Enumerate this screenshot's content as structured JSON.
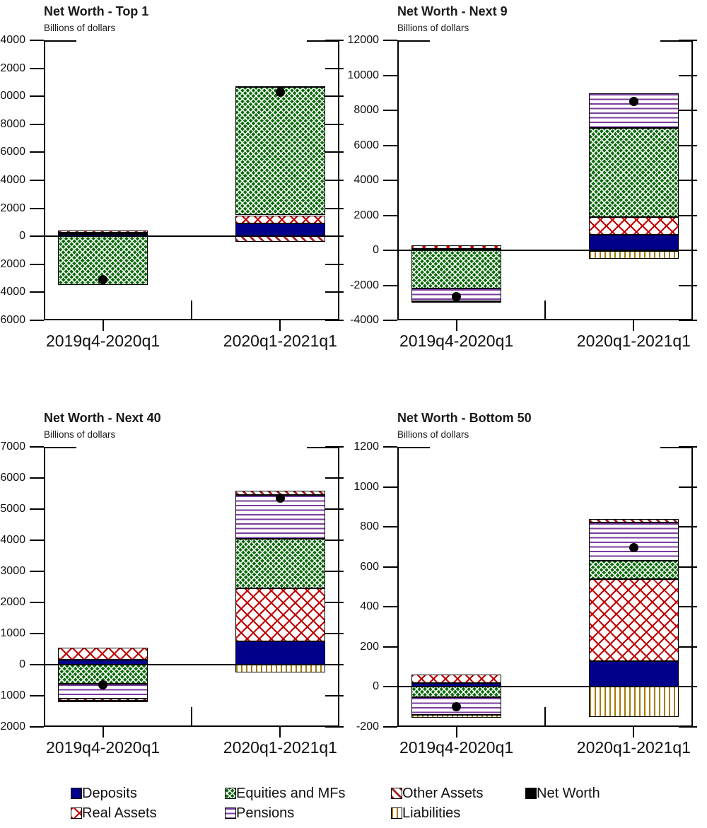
{
  "colors": {
    "deposits": "#00008B",
    "equities": "#0B6A0B",
    "real_assets": "#C00000",
    "pensions": "#7A3D9E",
    "other_assets": "#9E1F1F",
    "liabilities": "#A57A00",
    "net_worth": "#000000"
  },
  "legend": {
    "items": [
      {
        "label": "Deposits",
        "key": "deposits"
      },
      {
        "label": "Equities and MFs",
        "key": "equities"
      },
      {
        "label": "Other Assets",
        "key": "other_assets"
      },
      {
        "label": "Net Worth",
        "key": "net_worth"
      },
      {
        "label": "Real Assets",
        "key": "real_assets"
      },
      {
        "label": "Pensions",
        "key": "pensions"
      },
      {
        "label": "Liabilities",
        "key": "liabilities"
      }
    ]
  },
  "chart_data": [
    {
      "type": "bar",
      "title": "Net Worth - Top 1",
      "ylabel": "Billions of dollars",
      "categories": [
        "2019q4-2020q1",
        "2020q1-2021q1"
      ],
      "ylim": [
        -6000,
        14000
      ],
      "ystep": 2000,
      "grid": false,
      "stack_order": [
        "deposits",
        "real_assets",
        "equities",
        "pensions",
        "other_assets",
        "liabilities"
      ],
      "series": [
        {
          "name": "Deposits",
          "key": "deposits",
          "values": [
            150,
            900
          ]
        },
        {
          "name": "Real Assets",
          "key": "real_assets",
          "values": [
            100,
            600
          ]
        },
        {
          "name": "Equities and MFs",
          "key": "equities",
          "values": [
            -3500,
            9150
          ]
        },
        {
          "name": "Pensions",
          "key": "pensions",
          "values": [
            0,
            60
          ]
        },
        {
          "name": "Other Assets",
          "key": "other_assets",
          "values": [
            150,
            -400
          ]
        },
        {
          "name": "Liabilities",
          "key": "liabilities",
          "values": [
            0,
            0
          ]
        }
      ],
      "net_worth": [
        -3100,
        10310
      ]
    },
    {
      "type": "bar",
      "title": "Net Worth - Next 9",
      "ylabel": "Billions of dollars",
      "categories": [
        "2019q4-2020q1",
        "2020q1-2021q1"
      ],
      "ylim": [
        -4000,
        12000
      ],
      "ystep": 2000,
      "grid": false,
      "stack_order": [
        "deposits",
        "real_assets",
        "equities",
        "pensions",
        "other_assets",
        "liabilities"
      ],
      "series": [
        {
          "name": "Deposits",
          "key": "deposits",
          "values": [
            100,
            900
          ]
        },
        {
          "name": "Real Assets",
          "key": "real_assets",
          "values": [
            200,
            1000
          ]
        },
        {
          "name": "Equities and MFs",
          "key": "equities",
          "values": [
            -2200,
            5100
          ]
        },
        {
          "name": "Pensions",
          "key": "pensions",
          "values": [
            -700,
            1950
          ]
        },
        {
          "name": "Other Assets",
          "key": "other_assets",
          "values": [
            -50,
            -50
          ]
        },
        {
          "name": "Liabilities",
          "key": "liabilities",
          "values": [
            0,
            -450
          ]
        }
      ],
      "net_worth": [
        -2650,
        8500
      ]
    },
    {
      "type": "bar",
      "title": "Net Worth - Next 40",
      "ylabel": "Billions of dollars",
      "categories": [
        "2019q4-2020q1",
        "2020q1-2021q1"
      ],
      "ylim": [
        -2000,
        7000
      ],
      "ystep": 1000,
      "grid": false,
      "stack_order": [
        "deposits",
        "real_assets",
        "equities",
        "pensions",
        "other_assets",
        "liabilities"
      ],
      "series": [
        {
          "name": "Deposits",
          "key": "deposits",
          "values": [
            150,
            750
          ]
        },
        {
          "name": "Real Assets",
          "key": "real_assets",
          "values": [
            400,
            1700
          ]
        },
        {
          "name": "Equities and MFs",
          "key": "equities",
          "values": [
            -620,
            1600
          ]
        },
        {
          "name": "Pensions",
          "key": "pensions",
          "values": [
            -480,
            1400
          ]
        },
        {
          "name": "Other Assets",
          "key": "other_assets",
          "values": [
            -50,
            150
          ]
        },
        {
          "name": "Liabilities",
          "key": "liabilities",
          "values": [
            -50,
            -250
          ]
        }
      ],
      "net_worth": [
        -650,
        5350
      ]
    },
    {
      "type": "bar",
      "title": "Net Worth - Bottom 50",
      "ylabel": "Billions of dollars",
      "categories": [
        "2019q4-2020q1",
        "2020q1-2021q1"
      ],
      "ylim": [
        -200,
        1200
      ],
      "ystep": 200,
      "grid": false,
      "stack_order": [
        "deposits",
        "real_assets",
        "equities",
        "pensions",
        "other_assets",
        "liabilities"
      ],
      "series": [
        {
          "name": "Deposits",
          "key": "deposits",
          "values": [
            20,
            130
          ]
        },
        {
          "name": "Real Assets",
          "key": "real_assets",
          "values": [
            40,
            410
          ]
        },
        {
          "name": "Equities and MFs",
          "key": "equities",
          "values": [
            -50,
            90
          ]
        },
        {
          "name": "Pensions",
          "key": "pensions",
          "values": [
            -90,
            190
          ]
        },
        {
          "name": "Other Assets",
          "key": "other_assets",
          "values": [
            0,
            20
          ]
        },
        {
          "name": "Liabilities",
          "key": "liabilities",
          "values": [
            -15,
            -150
          ]
        }
      ],
      "net_worth": [
        -100,
        695
      ]
    }
  ]
}
